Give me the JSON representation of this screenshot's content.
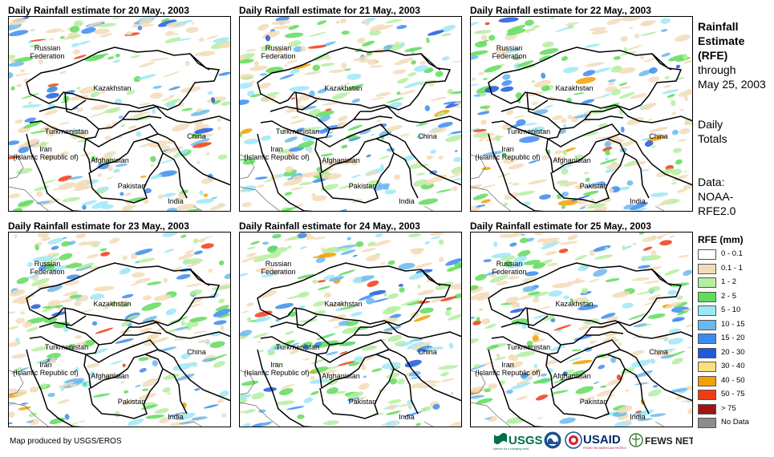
{
  "panels": [
    {
      "title": "Daily Rainfall estimate for 20 May., 2003"
    },
    {
      "title": "Daily Rainfall estimate for 21 May., 2003"
    },
    {
      "title": "Daily Rainfall estimate for 22 May., 2003"
    },
    {
      "title": "Daily Rainfall estimate for 23 May., 2003"
    },
    {
      "title": "Daily Rainfall estimate for 24 May., 2003"
    },
    {
      "title": "Daily Rainfall estimate for 25 May., 2003"
    }
  ],
  "map_labels": {
    "russia": "Russian\nFederation",
    "kazakhstan": "Kazakhstan",
    "turkmenistan": "Turkmenistan",
    "iran": "Iran\n(Islamic Republic of)",
    "afghanistan": "Afghanistan",
    "pakistan": "Pakistan",
    "china": "China",
    "india": "India"
  },
  "sidebar": {
    "title_lines": [
      "Rainfall",
      "Estimate",
      "(RFE)"
    ],
    "through_lines": [
      "through",
      "May 25, 2003"
    ],
    "totals_lines": [
      "Daily",
      "Totals"
    ],
    "data_lines": [
      "Data:",
      "NOAA-",
      "RFE2.0"
    ]
  },
  "legend": {
    "title": "RFE (mm)",
    "items": [
      {
        "label": "0 - 0.1",
        "color": "#ffffff"
      },
      {
        "label": "0.1 - 1",
        "color": "#f2dcb8"
      },
      {
        "label": "1 - 2",
        "color": "#b4eea0"
      },
      {
        "label": "2 - 5",
        "color": "#5fdc5a"
      },
      {
        "label": "5 - 10",
        "color": "#9ee8f6"
      },
      {
        "label": "10 - 15",
        "color": "#6ab8f0"
      },
      {
        "label": "15 - 20",
        "color": "#3c8cf0"
      },
      {
        "label": "20 - 30",
        "color": "#1e5adc"
      },
      {
        "label": "30 - 40",
        "color": "#f8e080"
      },
      {
        "label": "40 - 50",
        "color": "#f5a000"
      },
      {
        "label": "50 - 75",
        "color": "#f03c14"
      },
      {
        "label": "> 75",
        "color": "#a01414"
      },
      {
        "label": "No Data",
        "color": "#8c8c8c"
      }
    ]
  },
  "footer": {
    "credit": "Map produced by USGS/EROS"
  },
  "logos": {
    "usgs": "USGS",
    "usgs_tagline": "science for a changing world",
    "usaid": "USAID",
    "usaid_tagline": "FROM THE AMERICAN PEOPLE",
    "fews": "FEWS NET"
  }
}
